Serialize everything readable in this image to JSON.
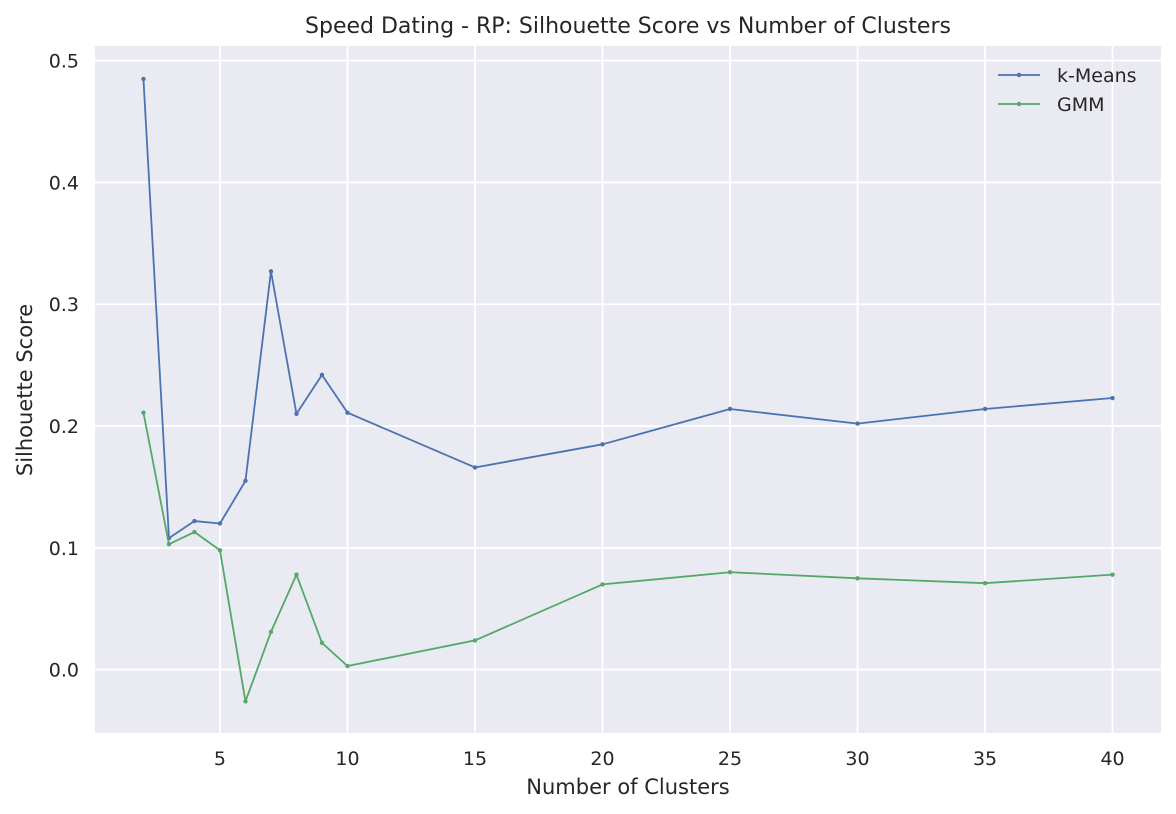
{
  "chart_data": {
    "type": "line",
    "title": "Speed Dating - RP: Silhouette Score vs Number of Clusters",
    "xlabel": "Number of Clusters",
    "ylabel": "Silhouette Score",
    "xlim": [
      0.1,
      41.9
    ],
    "ylim": [
      -0.052,
      0.512
    ],
    "xticks": [
      5,
      10,
      15,
      20,
      25,
      30,
      35,
      40
    ],
    "yticks": [
      0.0,
      0.1,
      0.2,
      0.3,
      0.4,
      0.5
    ],
    "grid": true,
    "legend": "top-right",
    "x": [
      2,
      3,
      4,
      5,
      6,
      7,
      8,
      9,
      10,
      15,
      20,
      25,
      30,
      35,
      40
    ],
    "series": [
      {
        "name": "k-Means",
        "color": "#4c72b0",
        "values": [
          0.485,
          0.108,
          0.122,
          0.12,
          0.155,
          0.327,
          0.21,
          0.242,
          0.211,
          0.166,
          0.185,
          0.214,
          0.202,
          0.214,
          0.223
        ]
      },
      {
        "name": "GMM",
        "color": "#55a868",
        "values": [
          0.211,
          0.103,
          0.113,
          0.098,
          -0.026,
          0.031,
          0.078,
          0.022,
          0.003,
          0.024,
          0.07,
          0.08,
          0.075,
          0.071,
          0.078
        ]
      }
    ]
  }
}
